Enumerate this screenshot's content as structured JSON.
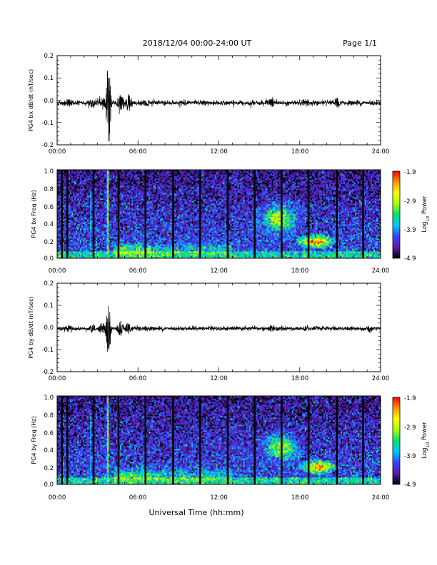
{
  "header": {
    "date_range": "2018/12/04  00:00-24:00 UT",
    "page": "Page 1/1"
  },
  "xlabel": "Universal Time (hh:mm)",
  "time_ticks": [
    "00:00",
    "06:00",
    "12:00",
    "18:00",
    "24:00"
  ],
  "colors": {
    "trace": "#000000",
    "spectrogram_scale": [
      "#000000",
      "#5a1aa8",
      "#3b40ff",
      "#00c8ff",
      "#00e070",
      "#a8ff00",
      "#ffff00",
      "#ff9900",
      "#ff0000"
    ]
  },
  "chart_data": [
    {
      "type": "line",
      "ylabel": "PG4 bx dB/dt (nT/sec)",
      "ylim": [
        -0.2,
        0.2
      ],
      "yticks": [
        "0.2",
        "0.1",
        "0.0",
        "-0.1",
        "-0.2"
      ],
      "baseline": -0.012,
      "noise": 0.006,
      "events": [
        {
          "t_hours": 3.8,
          "amplitude": 0.13
        },
        {
          "t_hours": 3.3,
          "amplitude": 0.02
        },
        {
          "t_hours": 4.7,
          "amplitude": 0.03
        },
        {
          "t_hours": 5.3,
          "amplitude": 0.022
        },
        {
          "t_hours": 2.6,
          "amplitude": 0.012
        },
        {
          "t_hours": 0.9,
          "amplitude": 0.01
        },
        {
          "t_hours": 6.6,
          "amplitude": 0.01
        },
        {
          "t_hours": 15.9,
          "amplitude": 0.012
        },
        {
          "t_hours": 18.5,
          "amplitude": 0.012
        },
        {
          "t_hours": 20.8,
          "amplitude": 0.01
        }
      ]
    },
    {
      "type": "heatmap",
      "ylabel": "PG4 bx Freq (Hz)",
      "ylim": [
        0.0,
        1.0
      ],
      "yticks": [
        "1.0",
        "0.8",
        "0.6",
        "0.4",
        "0.2",
        "0.0"
      ],
      "colorbar": {
        "label": "Log10 Power",
        "ticks": [
          "-1.9",
          "-2.9",
          "-3.9",
          "-4.9"
        ],
        "range": [
          -4.9,
          -1.9
        ]
      },
      "data_gaps_hours": [
        0.35,
        0.75,
        2.7,
        4.55,
        6.55,
        8.6,
        10.6,
        12.65,
        14.65,
        16.65,
        18.65,
        20.75,
        22.7
      ],
      "features": [
        {
          "t_center": 3.75,
          "t_width": 0.18,
          "f_max": 1.0,
          "level": -3.1
        },
        {
          "t_center": 2.5,
          "t_width": 0.12,
          "f_max": 0.8,
          "level": -3.9
        },
        {
          "t_center": 16.5,
          "t_width": 1.2,
          "f_center": 0.45,
          "f_width": 0.15,
          "level": -2.9
        },
        {
          "t_center": 19.2,
          "t_width": 0.9,
          "f_center": 0.19,
          "f_width": 0.05,
          "level": -2.2
        }
      ]
    },
    {
      "type": "line",
      "ylabel": "PG4 by dB/dt (nT/sec)",
      "ylim": [
        -0.2,
        0.2
      ],
      "yticks": [
        "0.2",
        "0.1",
        "0.0",
        "-0.1",
        "-0.2"
      ],
      "baseline": -0.005,
      "noise": 0.005,
      "events": [
        {
          "t_hours": 3.8,
          "amplitude": 0.08
        },
        {
          "t_hours": 3.3,
          "amplitude": 0.015
        },
        {
          "t_hours": 4.7,
          "amplitude": 0.02
        },
        {
          "t_hours": 5.3,
          "amplitude": 0.015
        },
        {
          "t_hours": 2.6,
          "amplitude": 0.012
        },
        {
          "t_hours": 0.9,
          "amplitude": 0.01
        },
        {
          "t_hours": 6.6,
          "amplitude": 0.008
        },
        {
          "t_hours": 15.9,
          "amplitude": 0.01
        },
        {
          "t_hours": 18.5,
          "amplitude": 0.01
        },
        {
          "t_hours": 23.2,
          "amplitude": 0.01
        }
      ]
    },
    {
      "type": "heatmap",
      "ylabel": "PG4 by Freq (Hz)",
      "ylim": [
        0.0,
        1.0
      ],
      "yticks": [
        "1.0",
        "0.8",
        "0.6",
        "0.4",
        "0.2",
        "0.0"
      ],
      "colorbar": {
        "label": "Log10 Power",
        "ticks": [
          "-1.9",
          "-2.9",
          "-3.9",
          "-4.9"
        ],
        "range": [
          -4.9,
          -1.9
        ]
      },
      "data_gaps_hours": [
        0.35,
        0.75,
        2.7,
        4.55,
        6.55,
        8.6,
        10.6,
        12.65,
        14.65,
        16.65,
        18.65,
        20.75,
        22.7
      ],
      "features": [
        {
          "t_center": 3.75,
          "t_width": 0.18,
          "f_max": 1.0,
          "level": -3.1
        },
        {
          "t_center": 2.5,
          "t_width": 0.12,
          "f_max": 0.8,
          "level": -3.9
        },
        {
          "t_center": 16.6,
          "t_width": 1.1,
          "f_center": 0.42,
          "f_width": 0.14,
          "level": -2.9
        },
        {
          "t_center": 19.4,
          "t_width": 0.9,
          "f_center": 0.2,
          "f_width": 0.05,
          "level": -2.2
        }
      ]
    }
  ]
}
